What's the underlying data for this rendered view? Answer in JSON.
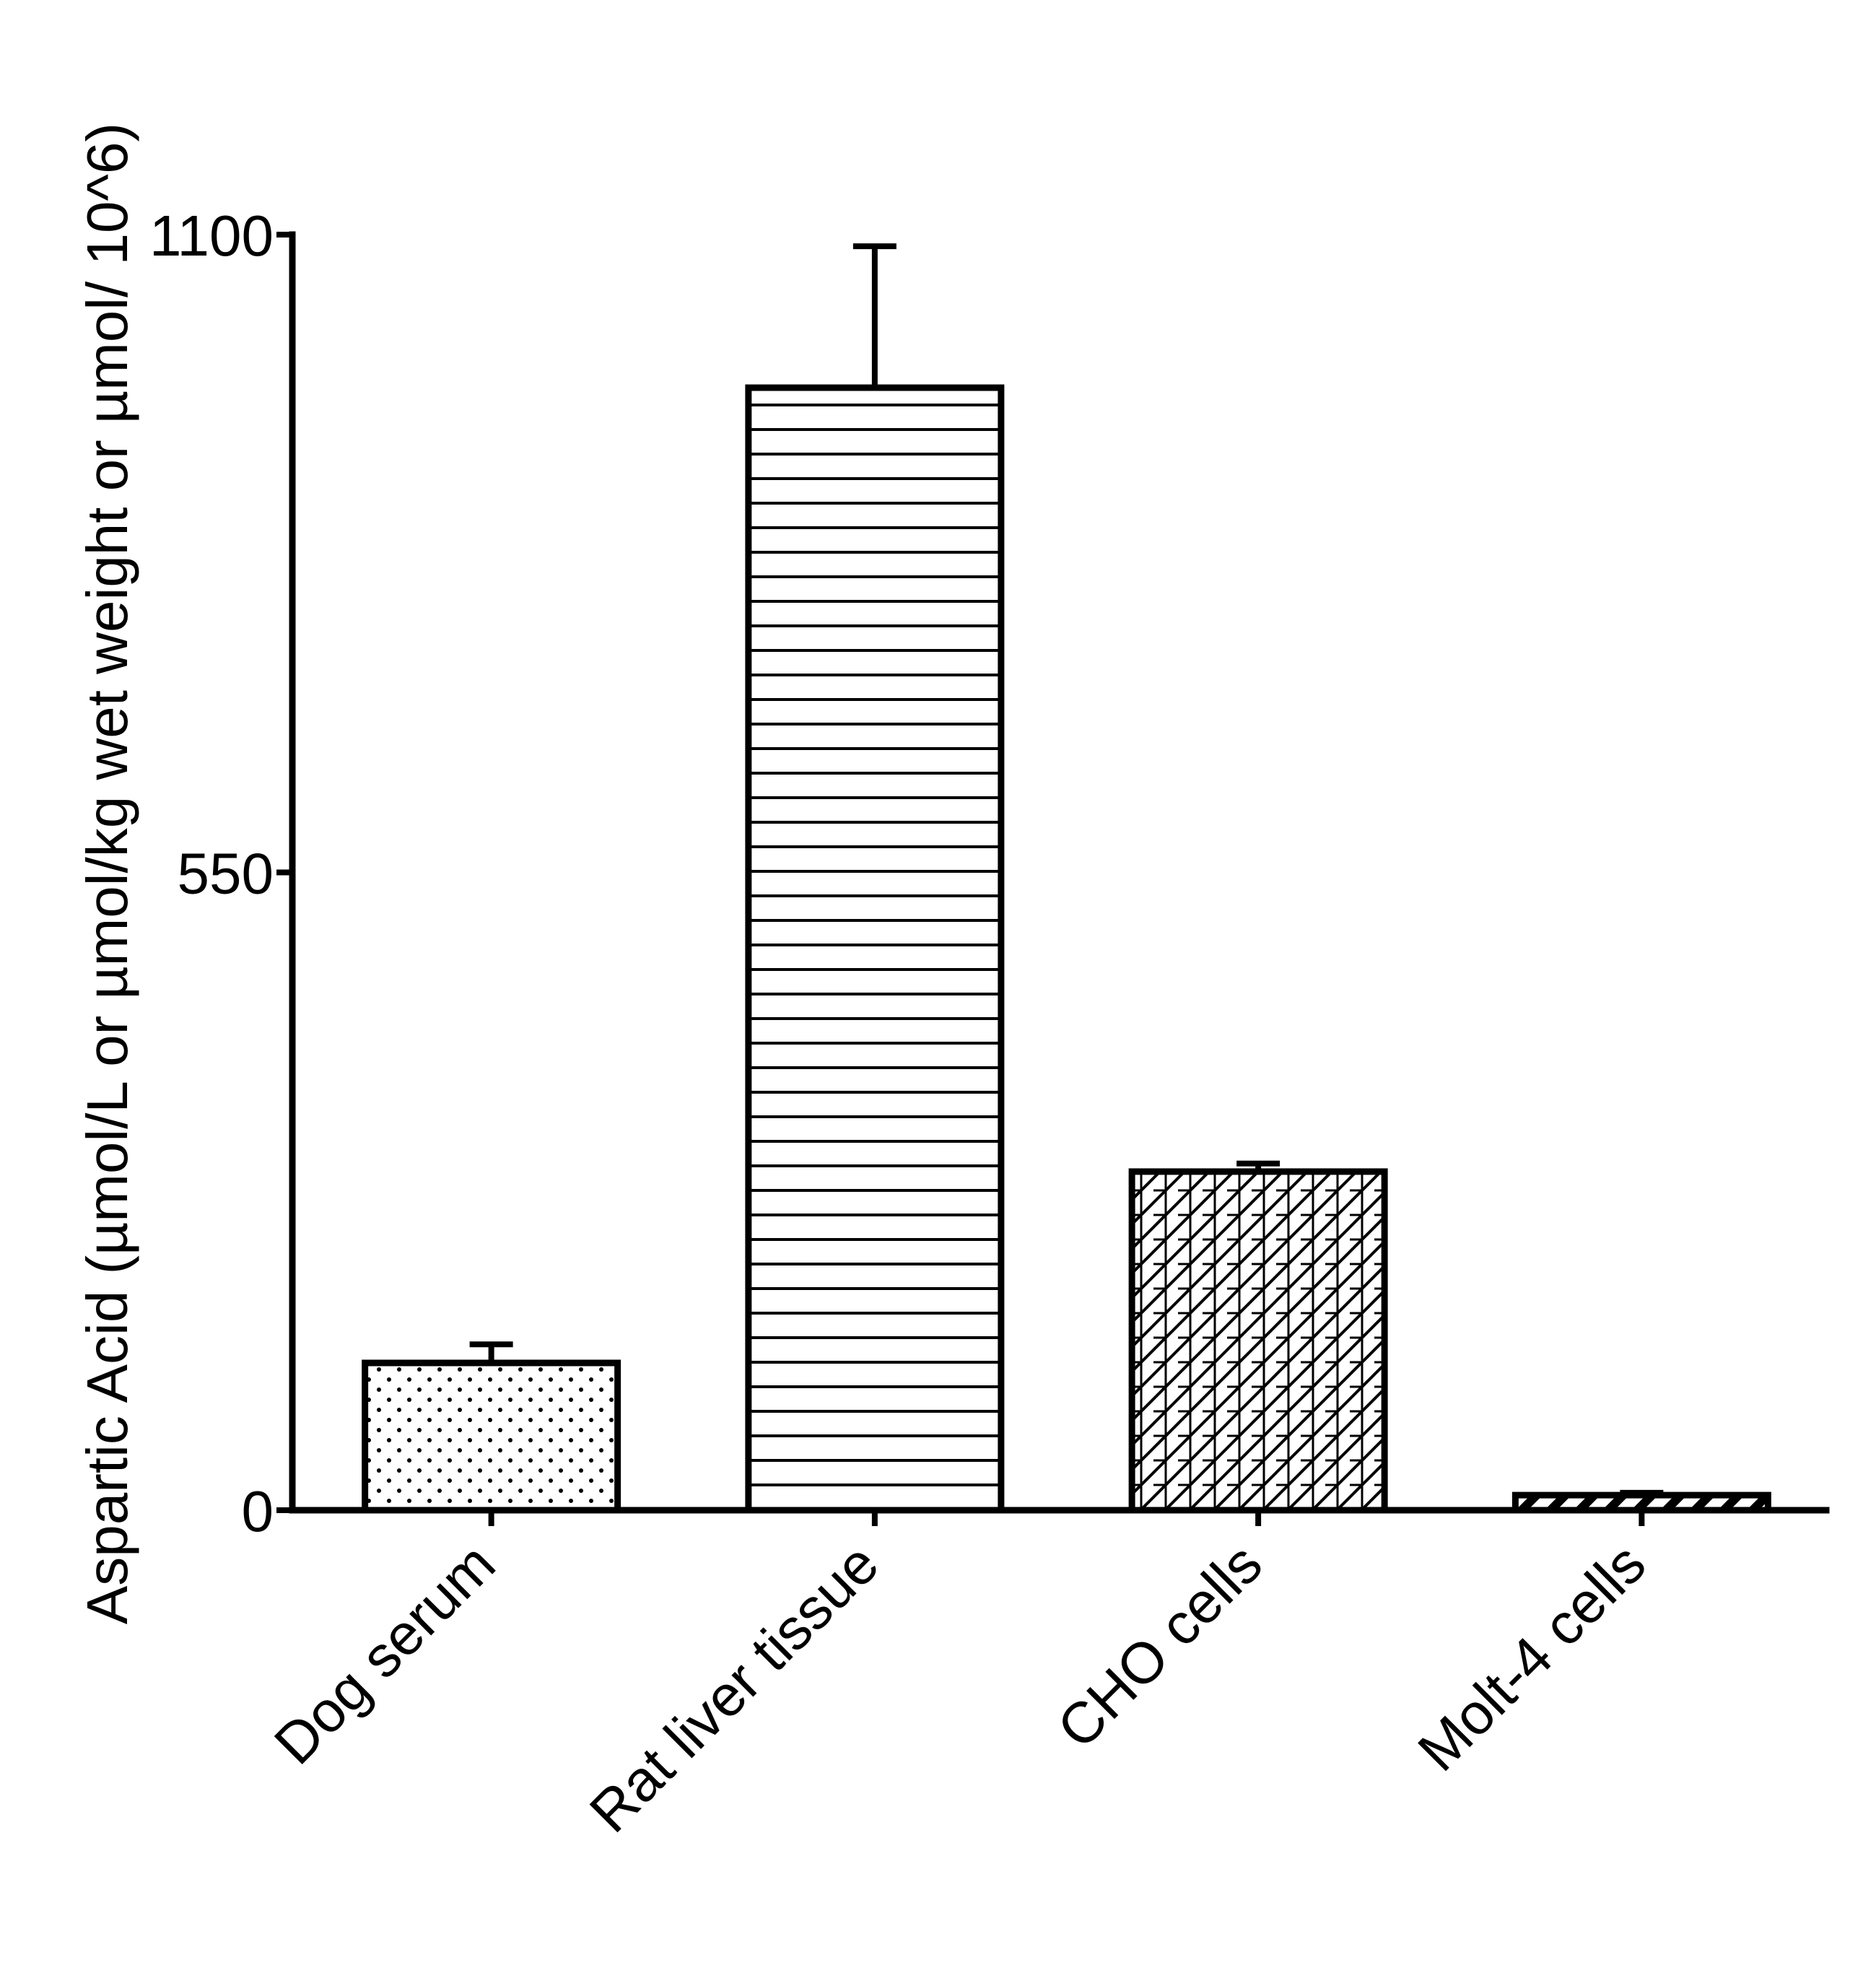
{
  "chart_data": {
    "type": "bar",
    "title": "",
    "xlabel": "",
    "ylabel": "Aspartic Acid (µmol/L or µmol/kg wet weight or µmol/ 10^6)",
    "ylim": [
      0,
      1100
    ],
    "yticks": [
      0,
      550,
      1100
    ],
    "categories": [
      "Dog serum",
      "Rat liver tissue",
      "CHO cells",
      "Molt-4 cells"
    ],
    "values": [
      127,
      968,
      292,
      13
    ],
    "error": [
      16,
      122,
      7,
      2
    ],
    "patterns": [
      "dots",
      "horizontal-lines",
      "crosshatch",
      "diagonal-stripes"
    ],
    "grid": false,
    "legend": "none"
  }
}
